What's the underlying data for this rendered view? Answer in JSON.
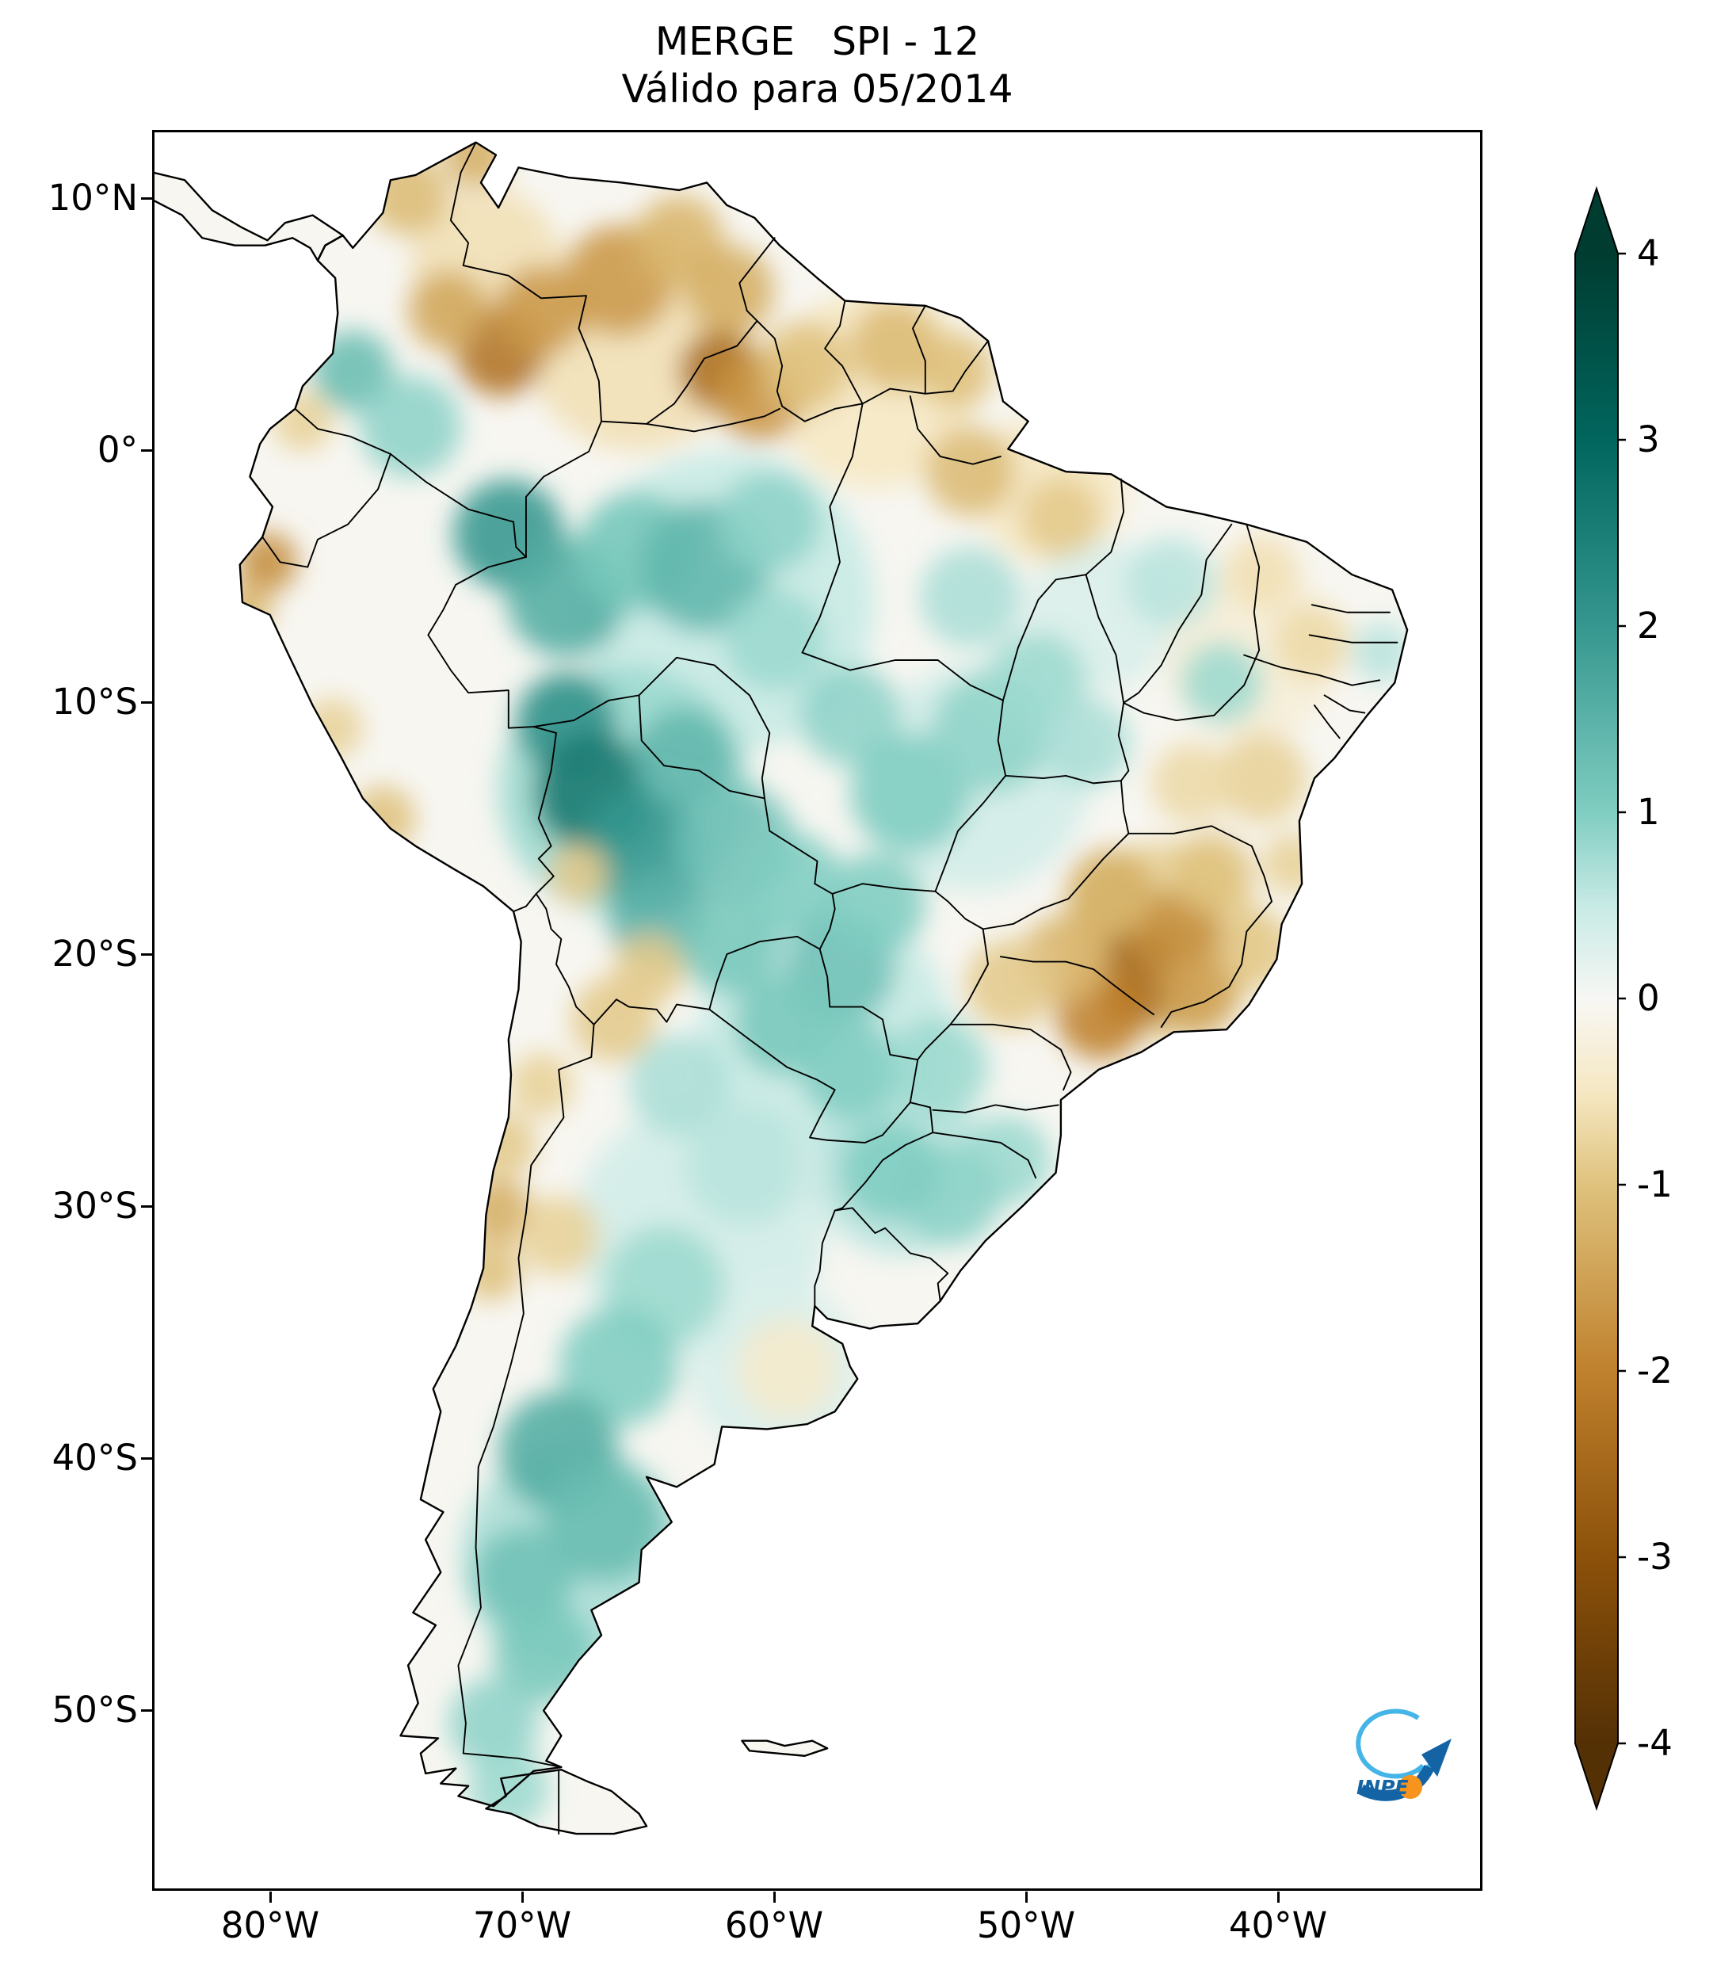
{
  "title": "MERGE   SPI - 12",
  "subtitle": "Válido para 05/2014",
  "axes": {
    "lat_labels": [
      "10°N",
      "0°",
      "10°S",
      "20°S",
      "30°S",
      "40°S",
      "50°S"
    ],
    "lon_labels": [
      "80°W",
      "70°W",
      "60°W",
      "50°W",
      "40°W"
    ]
  },
  "colorbar": {
    "tick_labels": [
      "4",
      "3",
      "2",
      "1",
      "0",
      "-1",
      "-2",
      "-3",
      "-4"
    ],
    "colormap_name": "BrBG",
    "stops": [
      {
        "v": -4,
        "c": "#543005"
      },
      {
        "v": -3,
        "c": "#8c510a"
      },
      {
        "v": -2,
        "c": "#bf812d"
      },
      {
        "v": -1,
        "c": "#dfc27d"
      },
      {
        "v": -0.5,
        "c": "#f6e8c3"
      },
      {
        "v": 0,
        "c": "#f7f7f4"
      },
      {
        "v": 0.5,
        "c": "#c7eae5"
      },
      {
        "v": 1,
        "c": "#80cdc1"
      },
      {
        "v": 2,
        "c": "#35978f"
      },
      {
        "v": 3,
        "c": "#01665e"
      },
      {
        "v": 4,
        "c": "#003c30"
      }
    ]
  },
  "logo": {
    "label": "INPE",
    "dark_blue": "#1464a5",
    "light_blue": "#45b5e8",
    "orange": "#f7941e"
  }
}
